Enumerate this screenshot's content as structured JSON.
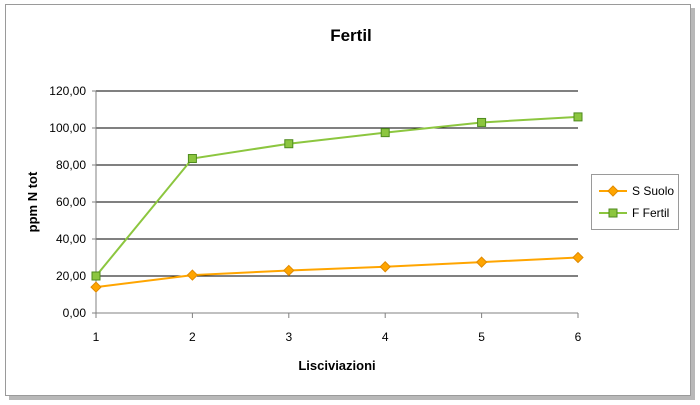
{
  "chart_data": {
    "type": "line",
    "title": "Fertil",
    "xlabel": "Lisciviazioni",
    "ylabel": "ppm N tot",
    "categories": [
      "1",
      "2",
      "3",
      "4",
      "5",
      "6"
    ],
    "y_ticks": [
      "0,00",
      "20,00",
      "40,00",
      "60,00",
      "80,00",
      "100,00",
      "120,00"
    ],
    "ylim": [
      0,
      120
    ],
    "grid": "horizontal major gridlines",
    "legend_position": "right",
    "series": [
      {
        "name": "S Suolo",
        "marker": "diamond",
        "color": "#FFA500",
        "marker_border": "#E08A00",
        "values": [
          14,
          20.5,
          23,
          25,
          27.5,
          30
        ]
      },
      {
        "name": "F Fertil",
        "marker": "square",
        "color": "#8CC63F",
        "marker_border": "#4E8A1E",
        "values": [
          20,
          83.5,
          91.5,
          97.5,
          103,
          106
        ]
      }
    ]
  }
}
